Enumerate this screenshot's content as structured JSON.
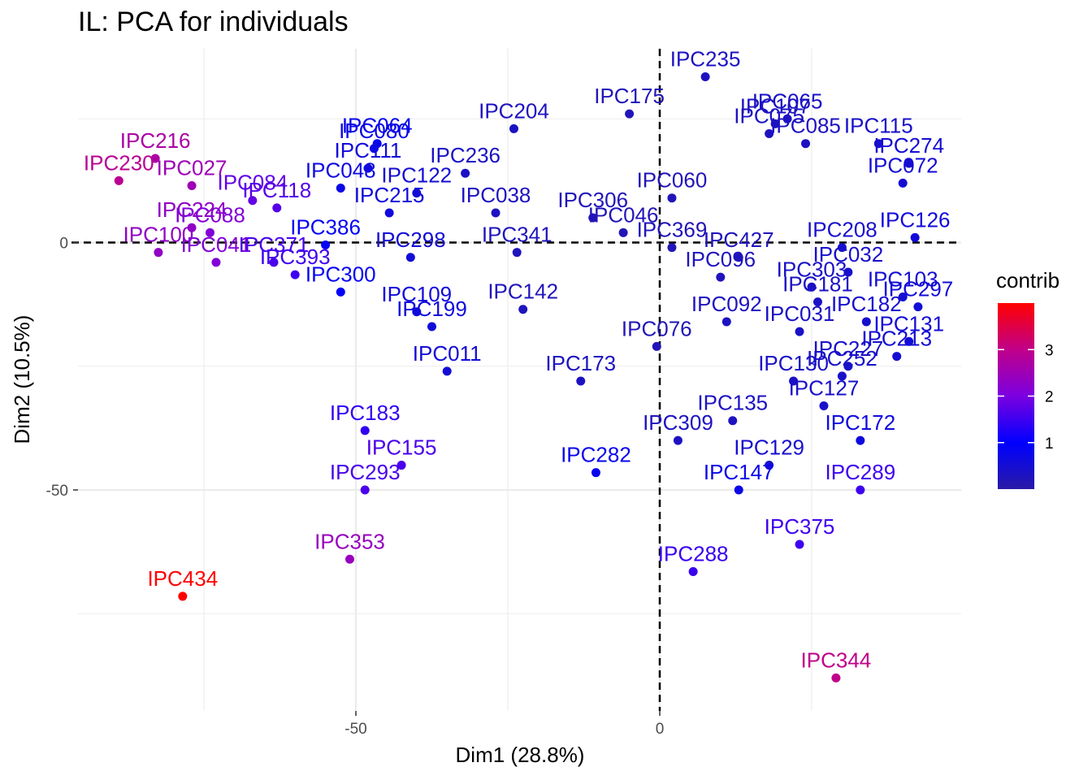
{
  "chart_data": {
    "type": "scatter",
    "title": "IL: PCA for individuals",
    "xlabel": "Dim1 (28.8%)",
    "ylabel": "Dim2 (10.5%)",
    "xlim": [
      -95,
      50
    ],
    "ylim": [
      -95,
      39
    ],
    "x_ticks": [
      -50,
      0
    ],
    "y_ticks": [
      0,
      -50
    ],
    "legend": {
      "title": "contrib",
      "ticks": [
        1,
        2,
        3
      ],
      "range": [
        0,
        4
      ],
      "position": "right",
      "colors": [
        "#2a1aa6",
        "#0000ff",
        "#7b00e0",
        "#c0008a",
        "#ff0000"
      ]
    },
    "reference_lines": {
      "x": 0,
      "y": 0
    },
    "points": [
      {
        "label": "IPC235",
        "x": 7.5,
        "y": 33.5,
        "c": 0.3
      },
      {
        "label": "IPC065",
        "x": 21,
        "y": 25,
        "c": 0.35
      },
      {
        "label": "IPC107",
        "x": 19,
        "y": 24,
        "c": 0.3
      },
      {
        "label": "IPC075",
        "x": 18,
        "y": 22,
        "c": 0.3
      },
      {
        "label": "IPC085",
        "x": 24,
        "y": 20,
        "c": 0.3
      },
      {
        "label": "IPC115",
        "x": 36,
        "y": 20,
        "c": 0.4
      },
      {
        "label": "IPC274",
        "x": 41,
        "y": 16,
        "c": 0.5
      },
      {
        "label": "IPC072",
        "x": 40,
        "y": 12,
        "c": 0.5
      },
      {
        "label": "IPC126",
        "x": 42,
        "y": 1,
        "c": 0.6
      },
      {
        "label": "IPC175",
        "x": -5,
        "y": 26,
        "c": 0.2
      },
      {
        "label": "IPC204",
        "x": -24,
        "y": 23,
        "c": 0.3
      },
      {
        "label": "IPC064",
        "x": -46.5,
        "y": 20,
        "c": 0.8
      },
      {
        "label": "IPC080",
        "x": -47,
        "y": 19,
        "c": 0.75
      },
      {
        "label": "IPC111",
        "x": -48,
        "y": 15,
        "c": 0.6
      },
      {
        "label": "IPC048",
        "x": -52.5,
        "y": 11,
        "c": 0.7
      },
      {
        "label": "IPC216",
        "x": -83,
        "y": 17,
        "c": 2.7
      },
      {
        "label": "IPC230",
        "x": -89,
        "y": 12.5,
        "c": 2.9
      },
      {
        "label": "IPC027",
        "x": -77,
        "y": 11.5,
        "c": 2.5
      },
      {
        "label": "IPC084",
        "x": -67,
        "y": 8.5,
        "c": 1.8
      },
      {
        "label": "IPC118",
        "x": -63,
        "y": 7,
        "c": 1.7
      },
      {
        "label": "IPC224",
        "x": -77,
        "y": 3,
        "c": 2.3
      },
      {
        "label": "IPC088",
        "x": -74,
        "y": 2,
        "c": 2.1
      },
      {
        "label": "IPC100",
        "x": -82.5,
        "y": -2,
        "c": 2.3
      },
      {
        "label": "IPC041",
        "x": -73,
        "y": -4,
        "c": 2.1
      },
      {
        "label": "IPC371",
        "x": -63.5,
        "y": -4,
        "c": 1.6
      },
      {
        "label": "IPC393",
        "x": -60,
        "y": -6.5,
        "c": 1.5
      },
      {
        "label": "IPC386",
        "x": -55,
        "y": -0.5,
        "c": 0.9
      },
      {
        "label": "IPC215",
        "x": -44.5,
        "y": 6,
        "c": 0.6
      },
      {
        "label": "IPC298",
        "x": -41,
        "y": -3,
        "c": 0.55
      },
      {
        "label": "IPC300",
        "x": -52.5,
        "y": -10,
        "c": 0.9
      },
      {
        "label": "IPC109",
        "x": -40,
        "y": -14,
        "c": 0.6
      },
      {
        "label": "IPC199",
        "x": -37.5,
        "y": -17,
        "c": 0.6
      },
      {
        "label": "IPC011",
        "x": -35,
        "y": -26,
        "c": 0.55
      },
      {
        "label": "IPC142",
        "x": -22.5,
        "y": -13.5,
        "c": 0.25
      },
      {
        "label": "IPC341",
        "x": -23.5,
        "y": -2,
        "c": 0.25
      },
      {
        "label": "IPC173",
        "x": -13,
        "y": -28,
        "c": 0.3
      },
      {
        "label": "IPC076",
        "x": -0.5,
        "y": -21,
        "c": 0.2
      },
      {
        "label": "IPC427",
        "x": 13,
        "y": -3,
        "c": 0.25
      },
      {
        "label": "IPC032",
        "x": 31,
        "y": -6,
        "c": 0.45
      },
      {
        "label": "IPC103",
        "x": 40,
        "y": -11,
        "c": 0.5
      },
      {
        "label": "IPC297",
        "x": 42.5,
        "y": -13,
        "c": 0.55
      },
      {
        "label": "IPC182",
        "x": 34,
        "y": -16,
        "c": 0.45
      },
      {
        "label": "IPC092",
        "x": 11,
        "y": -16,
        "c": 0.3
      },
      {
        "label": "IPC031",
        "x": 23,
        "y": -18,
        "c": 0.35
      },
      {
        "label": "IPC131",
        "x": 41,
        "y": -20,
        "c": 0.55
      },
      {
        "label": "IPC213",
        "x": 39,
        "y": -23,
        "c": 0.5
      },
      {
        "label": "IPC227",
        "x": 31,
        "y": -25,
        "c": 0.4
      },
      {
        "label": "IPC130",
        "x": 22,
        "y": -28,
        "c": 0.35
      },
      {
        "label": "IPC252",
        "x": 30,
        "y": -27,
        "c": 0.4
      },
      {
        "label": "IPC127",
        "x": 27,
        "y": -33,
        "c": 0.4
      },
      {
        "label": "IPC135",
        "x": 12,
        "y": -36,
        "c": 0.3
      },
      {
        "label": "IPC309",
        "x": 3,
        "y": -40,
        "c": 0.3
      },
      {
        "label": "IPC129",
        "x": 18,
        "y": -45,
        "c": 0.45
      },
      {
        "label": "IPC172",
        "x": 33,
        "y": -40,
        "c": 0.65
      },
      {
        "label": "IPC147",
        "x": 13,
        "y": -50,
        "c": 0.75
      },
      {
        "label": "IPC282",
        "x": -10.5,
        "y": -46.5,
        "c": 0.8
      },
      {
        "label": "IPC289",
        "x": 33,
        "y": -50,
        "c": 1.5
      },
      {
        "label": "IPC375",
        "x": 23,
        "y": -61,
        "c": 1.5
      },
      {
        "label": "IPC288",
        "x": 5.5,
        "y": -66.5,
        "c": 1.45
      },
      {
        "label": "IPC344",
        "x": 29,
        "y": -88,
        "c": 3.0
      },
      {
        "label": "IPC183",
        "x": -48.5,
        "y": -38,
        "c": 1.4
      },
      {
        "label": "IPC155",
        "x": -42.5,
        "y": -45,
        "c": 1.6
      },
      {
        "label": "IPC293",
        "x": -48.5,
        "y": -50,
        "c": 1.6
      },
      {
        "label": "IPC353",
        "x": -51,
        "y": -64,
        "c": 2.4
      },
      {
        "label": "IPC434",
        "x": -78.5,
        "y": -71.5,
        "c": 4.0
      },
      {
        "label": "IPC303",
        "x": 25,
        "y": -9,
        "c": 0.35
      },
      {
        "label": "IPC181",
        "x": 26,
        "y": -12,
        "c": 0.35
      },
      {
        "label": "IPC208",
        "x": 30,
        "y": -1,
        "c": 0.4
      },
      {
        "label": "IPC096",
        "x": 10,
        "y": -7,
        "c": 0.25
      },
      {
        "label": "IPC306",
        "x": -11,
        "y": 5,
        "c": 0.2
      },
      {
        "label": "IPC046",
        "x": -6,
        "y": 2,
        "c": 0.2
      },
      {
        "label": "IPC369",
        "x": 2,
        "y": -1,
        "c": 0.2
      },
      {
        "label": "IPC060",
        "x": 2,
        "y": 9,
        "c": 0.2
      },
      {
        "label": "IPC038",
        "x": -27,
        "y": 6,
        "c": 0.3
      },
      {
        "label": "IPC236",
        "x": -32,
        "y": 14,
        "c": 0.35
      },
      {
        "label": "IPC122",
        "x": -40,
        "y": 10,
        "c": 0.5
      }
    ]
  }
}
